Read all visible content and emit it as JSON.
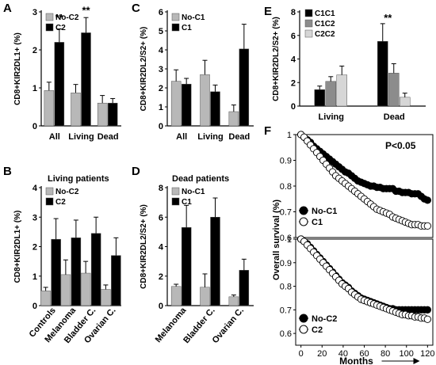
{
  "colors": {
    "gray": "#b8b8b8",
    "black": "#000000",
    "mid": "#8c8c8c",
    "light": "#d6d6d6",
    "axis": "#000000"
  },
  "chart_data": [
    {
      "panel": "A",
      "type": "bar",
      "ylabel": "CD8+KIR2DL1+ (%)",
      "ylim": [
        0,
        3
      ],
      "yticks": [
        0,
        1,
        2,
        3
      ],
      "categories": [
        "All",
        "Living",
        "Dead"
      ],
      "series": [
        {
          "name": "No-C2",
          "color": "gray",
          "values": [
            0.93,
            0.87,
            0.6
          ],
          "errors": [
            0.22,
            0.22,
            0.2
          ]
        },
        {
          "name": "C2",
          "color": "black",
          "values": [
            2.2,
            2.45,
            0.6
          ],
          "errors": [
            0.35,
            0.4,
            0.12
          ]
        }
      ],
      "annotations": [
        {
          "text": "**",
          "category": 0,
          "y": 2.75
        },
        {
          "text": "**",
          "category": 1,
          "y": 2.95
        }
      ],
      "legend": "top-left"
    },
    {
      "panel": "B",
      "type": "bar",
      "title": "Living patients",
      "ylabel": "CD8+KIR2DL1+ (%)",
      "ylim": [
        0,
        4
      ],
      "yticks": [
        0,
        1,
        2,
        3,
        4
      ],
      "categories": [
        "Controls",
        "Melanoma",
        "Bladder C.",
        "Ovarian C."
      ],
      "series": [
        {
          "name": "No-C2",
          "color": "gray",
          "values": [
            0.5,
            1.05,
            1.1,
            0.55
          ],
          "errors": [
            0.12,
            0.5,
            0.4,
            0.15
          ]
        },
        {
          "name": "C2",
          "color": "black",
          "values": [
            2.25,
            2.3,
            2.45,
            1.7
          ],
          "errors": [
            0.7,
            0.6,
            0.55,
            0.6
          ]
        }
      ],
      "legend": "top-left"
    },
    {
      "panel": "C",
      "type": "bar",
      "ylabel": "CD8+KIR2DL2/S2+ (%)",
      "ylim": [
        0,
        6
      ],
      "yticks": [
        0,
        1,
        2,
        3,
        4,
        5,
        6
      ],
      "categories": [
        "All",
        "Living",
        "Dead"
      ],
      "series": [
        {
          "name": "No-C1",
          "color": "gray",
          "values": [
            2.35,
            2.7,
            0.75
          ],
          "errors": [
            0.6,
            0.75,
            0.35
          ]
        },
        {
          "name": "C1",
          "color": "black",
          "values": [
            2.2,
            1.8,
            4.05
          ],
          "errors": [
            0.3,
            0.35,
            1.3
          ]
        }
      ],
      "legend": "top-left"
    },
    {
      "panel": "D",
      "type": "bar",
      "title": "Dead patients",
      "ylabel": "CD8+KIR2DL2/S2+ (%)",
      "ylim": [
        0,
        8
      ],
      "yticks": [
        0,
        2,
        4,
        6,
        8
      ],
      "categories": [
        "Melanoma",
        "Bladder C.",
        "Ovarian C."
      ],
      "series": [
        {
          "name": "No-C1",
          "color": "gray",
          "values": [
            1.3,
            1.25,
            0.6
          ],
          "errors": [
            0.15,
            0.9,
            0.12
          ]
        },
        {
          "name": "C1",
          "color": "black",
          "values": [
            5.3,
            6.0,
            2.4
          ],
          "errors": [
            1.5,
            1.3,
            0.75
          ]
        }
      ],
      "legend": "top-left"
    },
    {
      "panel": "E",
      "type": "bar",
      "ylabel": "CD8+KIR2DL2/S2+ (%)",
      "ylim": [
        0,
        8
      ],
      "yticks": [
        0,
        2,
        4,
        6,
        8
      ],
      "categories": [
        "Living",
        "Dead"
      ],
      "series": [
        {
          "name": "C1C1",
          "color": "black",
          "values": [
            1.4,
            5.5
          ],
          "errors": [
            0.3,
            1.5
          ]
        },
        {
          "name": "C1C2",
          "color": "mid",
          "values": [
            2.1,
            2.8
          ],
          "errors": [
            0.4,
            0.8
          ]
        },
        {
          "name": "C2C2",
          "color": "light",
          "values": [
            2.65,
            0.75
          ],
          "errors": [
            0.75,
            0.35
          ]
        }
      ],
      "annotations": [
        {
          "text": "**",
          "category": 1,
          "y": 7.2
        }
      ],
      "legend": "top-left"
    },
    {
      "panel": "F-top",
      "type": "scatter",
      "ylabel": "Overall survival (%)",
      "xlim": [
        -5,
        125
      ],
      "ylim": [
        0.6,
        1.0
      ],
      "yticks": [
        0.6,
        0.7,
        0.8,
        0.9,
        1.0
      ],
      "xticks": [],
      "annotation": "P<0.05",
      "series": [
        {
          "name": "No-C1",
          "marker": "filled",
          "x": [
            0,
            3,
            6,
            9,
            12,
            15,
            18,
            21,
            24,
            27,
            30,
            33,
            36,
            39,
            42,
            45,
            48,
            51,
            54,
            57,
            60,
            63,
            66,
            69,
            72,
            75,
            78,
            81,
            84,
            87,
            90,
            93,
            96,
            99,
            102,
            105,
            108,
            111,
            114,
            117,
            120
          ],
          "y": [
            1.0,
            0.99,
            0.98,
            0.97,
            0.955,
            0.945,
            0.935,
            0.925,
            0.915,
            0.905,
            0.895,
            0.885,
            0.875,
            0.865,
            0.855,
            0.85,
            0.84,
            0.83,
            0.82,
            0.815,
            0.81,
            0.805,
            0.8,
            0.8,
            0.795,
            0.795,
            0.79,
            0.79,
            0.79,
            0.79,
            0.78,
            0.78,
            0.775,
            0.775,
            0.775,
            0.77,
            0.77,
            0.77,
            0.76,
            0.75,
            0.745
          ]
        },
        {
          "name": "C1",
          "marker": "open",
          "x": [
            0,
            3,
            6,
            9,
            12,
            15,
            18,
            21,
            24,
            27,
            30,
            33,
            36,
            39,
            42,
            45,
            48,
            51,
            54,
            57,
            60,
            63,
            66,
            69,
            72,
            75,
            78,
            81,
            84,
            87,
            90,
            93,
            96,
            99,
            102,
            105,
            108,
            111,
            114,
            117,
            120
          ],
          "y": [
            1.0,
            0.99,
            0.975,
            0.96,
            0.945,
            0.93,
            0.915,
            0.9,
            0.885,
            0.87,
            0.855,
            0.84,
            0.83,
            0.82,
            0.81,
            0.8,
            0.79,
            0.78,
            0.77,
            0.76,
            0.75,
            0.74,
            0.73,
            0.72,
            0.71,
            0.705,
            0.7,
            0.695,
            0.69,
            0.68,
            0.675,
            0.67,
            0.665,
            0.66,
            0.655,
            0.65,
            0.65,
            0.65,
            0.645,
            0.645,
            0.645
          ]
        }
      ],
      "legend": "bottom-left"
    },
    {
      "panel": "F-bottom",
      "type": "scatter",
      "ylabel": "Overall survival (%)",
      "xlabel": "Months",
      "xlim": [
        -5,
        125
      ],
      "ylim": [
        0.55,
        1.0
      ],
      "yticks": [
        0.6,
        0.7,
        0.8,
        0.9,
        1.0
      ],
      "xticks": [
        0,
        20,
        40,
        60,
        80,
        100,
        120
      ],
      "series": [
        {
          "name": "No-C2",
          "marker": "filled",
          "x": [
            0,
            3,
            6,
            9,
            12,
            15,
            18,
            21,
            24,
            27,
            30,
            33,
            36,
            39,
            42,
            45,
            48,
            51,
            54,
            57,
            60,
            63,
            66,
            69,
            72,
            75,
            78,
            81,
            84,
            87,
            90,
            93,
            96,
            99,
            102,
            105,
            108,
            111,
            114,
            117,
            120
          ],
          "y": [
            1.0,
            0.99,
            0.98,
            0.965,
            0.95,
            0.935,
            0.92,
            0.905,
            0.89,
            0.875,
            0.86,
            0.845,
            0.83,
            0.815,
            0.805,
            0.795,
            0.78,
            0.77,
            0.76,
            0.75,
            0.745,
            0.74,
            0.735,
            0.73,
            0.725,
            0.72,
            0.715,
            0.71,
            0.705,
            0.705,
            0.7,
            0.7,
            0.7,
            0.7,
            0.7,
            0.7,
            0.7,
            0.7,
            0.7,
            0.7,
            0.7
          ]
        },
        {
          "name": "C2",
          "marker": "open",
          "x": [
            0,
            3,
            6,
            9,
            12,
            15,
            18,
            21,
            24,
            27,
            30,
            33,
            36,
            39,
            42,
            45,
            48,
            51,
            54,
            57,
            60,
            63,
            66,
            69,
            72,
            75,
            78,
            81,
            84,
            87,
            90,
            93,
            96,
            99,
            102,
            105,
            108,
            111,
            114,
            117,
            120
          ],
          "y": [
            1.0,
            0.99,
            0.975,
            0.96,
            0.945,
            0.93,
            0.915,
            0.9,
            0.885,
            0.87,
            0.855,
            0.84,
            0.825,
            0.81,
            0.8,
            0.79,
            0.775,
            0.765,
            0.755,
            0.745,
            0.74,
            0.735,
            0.73,
            0.725,
            0.72,
            0.715,
            0.71,
            0.705,
            0.7,
            0.695,
            0.69,
            0.685,
            0.68,
            0.68,
            0.675,
            0.675,
            0.67,
            0.67,
            0.665,
            0.665,
            0.66
          ]
        }
      ],
      "legend": "bottom-left"
    }
  ],
  "panel_labels": [
    "A",
    "B",
    "C",
    "D",
    "E",
    "F"
  ]
}
